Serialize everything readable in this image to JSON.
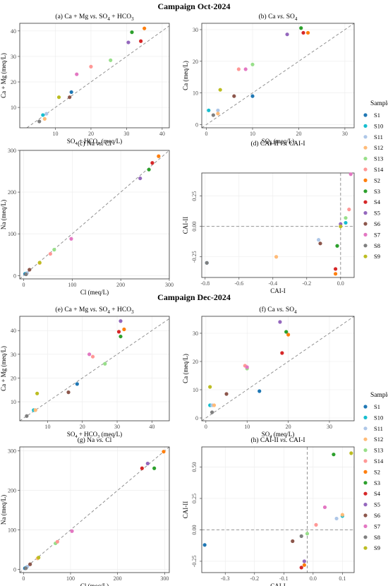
{
  "colors": {
    "S1": "#1f77b4",
    "S10": "#17becf",
    "S11": "#aec7e8",
    "S12": "#ffbb78",
    "S13": "#98df8a",
    "S14": "#ff9896",
    "S2": "#ff7f0e",
    "S3": "#2ca02c",
    "S4": "#d62728",
    "S5": "#9467bd",
    "S6": "#8c564b",
    "S7": "#e377c2",
    "S8": "#7f7f7f",
    "S9": "#bcbd22"
  },
  "campaigns": [
    {
      "title": "Campaign Oct-2024",
      "legend": {
        "title": "Samples",
        "items": [
          "S1",
          "S10",
          "S11",
          "S12",
          "S13",
          "S14",
          "S2",
          "S3",
          "S4",
          "S5",
          "S6",
          "S7",
          "S8",
          "S9"
        ]
      },
      "chart_data": [
        {
          "type": "scatter",
          "title_parts": [
            "(a) Ca + Mg",
            "vs.",
            "SO",
            "4",
            "+ HCO",
            "3"
          ],
          "xlabel": "SO4 + HCO3 (meq/L)",
          "ylabel": "Ca + Mg (meq/L)",
          "xlim": [
            0,
            42
          ],
          "ylim": [
            2,
            43
          ],
          "xticks": [
            10,
            20,
            30,
            40
          ],
          "yticks": [
            10,
            20,
            30,
            40
          ],
          "diagonal": true,
          "points": [
            {
              "s": "S1",
              "x": 14.5,
              "y": 16.0
            },
            {
              "s": "S10",
              "x": 6.5,
              "y": 7.0
            },
            {
              "s": "S11",
              "x": 7.5,
              "y": 7.5
            },
            {
              "s": "S12",
              "x": 7.0,
              "y": 5.5
            },
            {
              "s": "S13",
              "x": 25.5,
              "y": 28.5
            },
            {
              "s": "S14",
              "x": 20.0,
              "y": 26.0
            },
            {
              "s": "S2",
              "x": 35.0,
              "y": 41.0
            },
            {
              "s": "S3",
              "x": 31.5,
              "y": 39.5
            },
            {
              "s": "S4",
              "x": 34.0,
              "y": 36.0
            },
            {
              "s": "S5",
              "x": 30.5,
              "y": 35.5
            },
            {
              "s": "S6",
              "x": 14.0,
              "y": 14.0
            },
            {
              "s": "S7",
              "x": 16.0,
              "y": 23.0
            },
            {
              "s": "S8",
              "x": 5.5,
              "y": 4.5
            },
            {
              "s": "S9",
              "x": 11.0,
              "y": 14.0
            }
          ]
        },
        {
          "type": "scatter",
          "title_parts": [
            "(b) Ca",
            "vs.",
            "SO",
            "4"
          ],
          "xlabel": "SO4 (meq/L)",
          "ylabel": "Ca (meq/L)",
          "xlim": [
            -1,
            32
          ],
          "ylim": [
            -1,
            32
          ],
          "xticks": [
            0,
            10,
            20,
            30
          ],
          "yticks": [
            0,
            10,
            20,
            30
          ],
          "diagonal": true,
          "points": [
            {
              "s": "S1",
              "x": 10.0,
              "y": 9.0
            },
            {
              "s": "S10",
              "x": 0.5,
              "y": 4.5
            },
            {
              "s": "S11",
              "x": 2.5,
              "y": 4.5
            },
            {
              "s": "S12",
              "x": 2.5,
              "y": 3.5
            },
            {
              "s": "S13",
              "x": 10.0,
              "y": 19.0
            },
            {
              "s": "S14",
              "x": 7.0,
              "y": 17.5
            },
            {
              "s": "S2",
              "x": 22.0,
              "y": 29.0
            },
            {
              "s": "S3",
              "x": 20.5,
              "y": 30.5
            },
            {
              "s": "S4",
              "x": 21.0,
              "y": 29.0
            },
            {
              "s": "S5",
              "x": 17.5,
              "y": 28.5
            },
            {
              "s": "S6",
              "x": 6.0,
              "y": 9.0
            },
            {
              "s": "S7",
              "x": 8.5,
              "y": 17.5
            },
            {
              "s": "S8",
              "x": 1.5,
              "y": 3.0
            },
            {
              "s": "S9",
              "x": 3.0,
              "y": 11.0
            }
          ]
        },
        {
          "type": "scatter",
          "title_parts": [
            "(c) Na",
            "vs.",
            "Cl"
          ],
          "xlabel": "Cl (meq/L)",
          "ylabel": "Na (meq/L)",
          "xlim": [
            -8,
            300
          ],
          "ylim": [
            -8,
            300
          ],
          "xticks": [
            0,
            100,
            200,
            300
          ],
          "yticks": [
            0,
            100,
            200,
            300
          ],
          "diagonal": true,
          "points": [
            {
              "s": "S1",
              "x": 3,
              "y": 4
            },
            {
              "s": "S10",
              "x": 5,
              "y": 5
            },
            {
              "s": "S11",
              "x": 7,
              "y": 6
            },
            {
              "s": "S12",
              "x": 33,
              "y": 30
            },
            {
              "s": "S13",
              "x": 63,
              "y": 62
            },
            {
              "s": "S14",
              "x": 55,
              "y": 52
            },
            {
              "s": "S2",
              "x": 278,
              "y": 286
            },
            {
              "s": "S3",
              "x": 258,
              "y": 254
            },
            {
              "s": "S4",
              "x": 265,
              "y": 270
            },
            {
              "s": "S5",
              "x": 240,
              "y": 233
            },
            {
              "s": "S6",
              "x": 12,
              "y": 14
            },
            {
              "s": "S7",
              "x": 98,
              "y": 88
            },
            {
              "s": "S8",
              "x": 5,
              "y": 3
            },
            {
              "s": "S9",
              "x": 33,
              "y": 31
            }
          ]
        },
        {
          "type": "scatter",
          "title_parts": [
            "(d) CAI-II",
            "vs.",
            "CAI-I"
          ],
          "xlabel": "CAI-I",
          "ylabel": "CAI-II",
          "xlim": [
            -0.82,
            0.08
          ],
          "ylim": [
            -0.42,
            0.44
          ],
          "xticks": [
            -0.8,
            -0.6,
            -0.4,
            -0.2,
            0.0
          ],
          "yticks": [
            -0.25,
            0.0,
            0.25
          ],
          "xtick_labels": [
            "-0.8",
            "-0.6",
            "-0.4",
            "-0.2",
            "0.0"
          ],
          "ytick_labels": [
            "-0.25",
            "0.00",
            "0.25"
          ],
          "refx": 0,
          "refy": 0,
          "points": [
            {
              "s": "S1",
              "x": -0.79,
              "y": -0.3
            },
            {
              "s": "S10",
              "x": 0.03,
              "y": 0.03
            },
            {
              "s": "S11",
              "x": -0.13,
              "y": -0.11
            },
            {
              "s": "S12",
              "x": -0.38,
              "y": -0.25
            },
            {
              "s": "S13",
              "x": 0.03,
              "y": 0.07
            },
            {
              "s": "S14",
              "x": 0.05,
              "y": 0.14
            },
            {
              "s": "S2",
              "x": -0.03,
              "y": -0.39
            },
            {
              "s": "S3",
              "x": -0.02,
              "y": -0.16
            },
            {
              "s": "S4",
              "x": -0.03,
              "y": -0.35
            },
            {
              "s": "S5",
              "x": 0.0,
              "y": 0.02
            },
            {
              "s": "S6",
              "x": -0.12,
              "y": -0.14
            },
            {
              "s": "S7",
              "x": 0.06,
              "y": 0.43
            },
            {
              "s": "S8",
              "x": -0.79,
              "y": -0.3
            },
            {
              "s": "S9",
              "x": 0.0,
              "y": 0.0
            }
          ]
        }
      ]
    },
    {
      "title": "Campaign Dec-2024",
      "legend": {
        "title": "Samples",
        "items": [
          "S1",
          "S10",
          "S11",
          "S12",
          "S13",
          "S14",
          "S2",
          "S3",
          "S4",
          "S5",
          "S6",
          "S7",
          "S8",
          "S9"
        ]
      },
      "chart_data": [
        {
          "type": "scatter",
          "title_parts": [
            "(e) Ca + Mg",
            "vs.",
            "SO",
            "4",
            "+ HCO",
            "3"
          ],
          "xlabel": "SO4 + HCO3 (meq/L)",
          "ylabel": "Ca + Mg (meq/L)",
          "xlim": [
            2,
            45
          ],
          "ylim": [
            2,
            46
          ],
          "xticks": [
            10,
            20,
            30,
            40
          ],
          "yticks": [
            10,
            20,
            30,
            40
          ],
          "diagonal": true,
          "points": [
            {
              "s": "S1",
              "x": 18.5,
              "y": 17.5
            },
            {
              "s": "S10",
              "x": 6.0,
              "y": 6.5
            },
            {
              "s": "S11",
              "x": 6.5,
              "y": 6.5
            },
            {
              "s": "S12",
              "x": 6.5,
              "y": 6.5
            },
            {
              "s": "S13",
              "x": 26.5,
              "y": 26.0
            },
            {
              "s": "S14",
              "x": 23.0,
              "y": 29.0
            },
            {
              "s": "S2",
              "x": 32.0,
              "y": 40.5
            },
            {
              "s": "S3",
              "x": 31.0,
              "y": 37.5
            },
            {
              "s": "S4",
              "x": 30.5,
              "y": 39.5
            },
            {
              "s": "S5",
              "x": 31.0,
              "y": 44.0
            },
            {
              "s": "S6",
              "x": 16.0,
              "y": 14.0
            },
            {
              "s": "S7",
              "x": 22.0,
              "y": 30.0
            },
            {
              "s": "S8",
              "x": 4.0,
              "y": 4.0
            },
            {
              "s": "S9",
              "x": 7.0,
              "y": 13.5
            }
          ]
        },
        {
          "type": "scatter",
          "title_parts": [
            "(f) Ca",
            "vs.",
            "SO",
            "4"
          ],
          "xlabel": "SO4 (meq/L)",
          "ylabel": "Ca (meq/L)",
          "xlim": [
            -1,
            36
          ],
          "ylim": [
            -1,
            36
          ],
          "xticks": [
            0,
            10,
            20,
            30
          ],
          "yticks": [
            0,
            10,
            20,
            30
          ],
          "diagonal": true,
          "points": [
            {
              "s": "S1",
              "x": 13.0,
              "y": 9.5
            },
            {
              "s": "S10",
              "x": 1.0,
              "y": 4.5
            },
            {
              "s": "S11",
              "x": 1.5,
              "y": 4.5
            },
            {
              "s": "S12",
              "x": 2.0,
              "y": 4.5
            },
            {
              "s": "S13",
              "x": 10.0,
              "y": 17.5
            },
            {
              "s": "S14",
              "x": 9.5,
              "y": 18.5
            },
            {
              "s": "S2",
              "x": 20.0,
              "y": 29.5
            },
            {
              "s": "S3",
              "x": 19.5,
              "y": 30.5
            },
            {
              "s": "S4",
              "x": 18.5,
              "y": 23.0
            },
            {
              "s": "S5",
              "x": 18.0,
              "y": 34.0
            },
            {
              "s": "S6",
              "x": 5.0,
              "y": 8.5
            },
            {
              "s": "S7",
              "x": 10.0,
              "y": 18.0
            },
            {
              "s": "S8",
              "x": 1.5,
              "y": 2.0
            },
            {
              "s": "S9",
              "x": 1.0,
              "y": 11.0
            }
          ]
        },
        {
          "type": "scatter",
          "title_parts": [
            "(g) Na",
            "vs.",
            "Cl"
          ],
          "xlabel": "Cl (meq/L)",
          "ylabel": "Na (meq/L)",
          "xlim": [
            -8,
            310
          ],
          "ylim": [
            -8,
            310
          ],
          "xticks": [
            0,
            100,
            200,
            300
          ],
          "yticks": [
            0,
            100,
            200,
            300
          ],
          "diagonal": true,
          "points": [
            {
              "s": "S1",
              "x": 3,
              "y": 3
            },
            {
              "s": "S10",
              "x": 6,
              "y": 5
            },
            {
              "s": "S11",
              "x": 8,
              "y": 7
            },
            {
              "s": "S12",
              "x": 30,
              "y": 28
            },
            {
              "s": "S13",
              "x": 68,
              "y": 66
            },
            {
              "s": "S14",
              "x": 72,
              "y": 70
            },
            {
              "s": "S2",
              "x": 298,
              "y": 298
            },
            {
              "s": "S3",
              "x": 278,
              "y": 256
            },
            {
              "s": "S4",
              "x": 252,
              "y": 256
            },
            {
              "s": "S5",
              "x": 264,
              "y": 268
            },
            {
              "s": "S6",
              "x": 14,
              "y": 13
            },
            {
              "s": "S7",
              "x": 103,
              "y": 97
            },
            {
              "s": "S8",
              "x": 5,
              "y": 3
            },
            {
              "s": "S9",
              "x": 32,
              "y": 30
            }
          ]
        },
        {
          "type": "scatter",
          "title_parts": [
            "(h) CAI-II",
            "vs.",
            "CAI-I"
          ],
          "xlabel": "CAI-I",
          "ylabel": "CAI-II",
          "xlim": [
            -0.38,
            0.14
          ],
          "ylim": [
            -0.34,
            0.66
          ],
          "xticks": [
            -0.3,
            -0.2,
            -0.1,
            0.0,
            0.1
          ],
          "yticks": [
            -0.25,
            0.0,
            0.25,
            0.5
          ],
          "xtick_labels": [
            "-0.3",
            "-0.2",
            "-0.1",
            "0.0",
            "0.1"
          ],
          "ytick_labels": [
            "-0.25",
            "0.00",
            "0.25",
            "0.50"
          ],
          "refx": -0.02,
          "refy": 0,
          "points": [
            {
              "s": "S1",
              "x": -0.37,
              "y": -0.12
            },
            {
              "s": "S10",
              "x": 0.1,
              "y": 0.11
            },
            {
              "s": "S11",
              "x": 0.08,
              "y": 0.09
            },
            {
              "s": "S12",
              "x": 0.1,
              "y": 0.12
            },
            {
              "s": "S13",
              "x": -0.02,
              "y": -0.03
            },
            {
              "s": "S14",
              "x": 0.01,
              "y": 0.04
            },
            {
              "s": "S2",
              "x": -0.03,
              "y": -0.28
            },
            {
              "s": "S3",
              "x": 0.07,
              "y": 0.6
            },
            {
              "s": "S4",
              "x": -0.04,
              "y": -0.3
            },
            {
              "s": "S5",
              "x": -0.03,
              "y": -0.25
            },
            {
              "s": "S6",
              "x": -0.07,
              "y": -0.09
            },
            {
              "s": "S7",
              "x": 0.04,
              "y": 0.18
            },
            {
              "s": "S8",
              "x": -0.04,
              "y": -0.05
            },
            {
              "s": "S9",
              "x": 0.13,
              "y": 0.61
            }
          ]
        }
      ]
    }
  ]
}
